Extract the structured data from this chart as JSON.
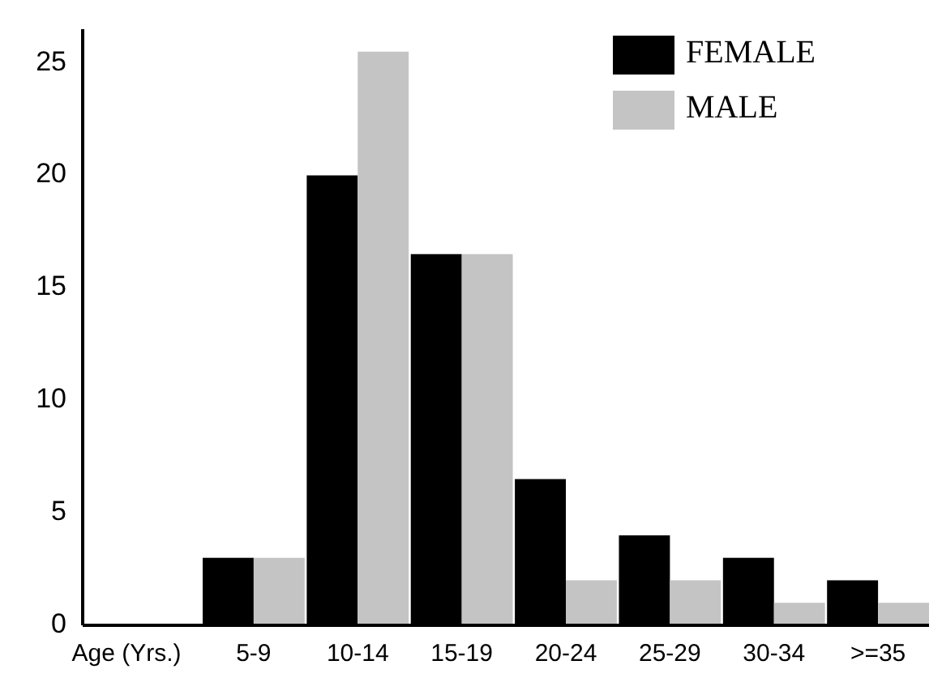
{
  "chart_data": {
    "type": "bar",
    "xlabel": "Age (Yrs.)",
    "categories": [
      "5-9",
      "10-14",
      "15-19",
      "20-24",
      "25-29",
      "30-34",
      ">=35"
    ],
    "series": [
      {
        "name": "FEMALE",
        "color": "#000000",
        "values": [
          3,
          20,
          16.5,
          6.5,
          4,
          3,
          2
        ]
      },
      {
        "name": "MALE",
        "color": "#c4c4c4",
        "values": [
          3,
          25.5,
          16.5,
          2,
          2,
          1,
          1
        ]
      }
    ],
    "ylim": [
      0,
      26.5
    ],
    "yticks": [
      0,
      5,
      10,
      15,
      20,
      25
    ],
    "legend": "top right",
    "grid": false
  }
}
